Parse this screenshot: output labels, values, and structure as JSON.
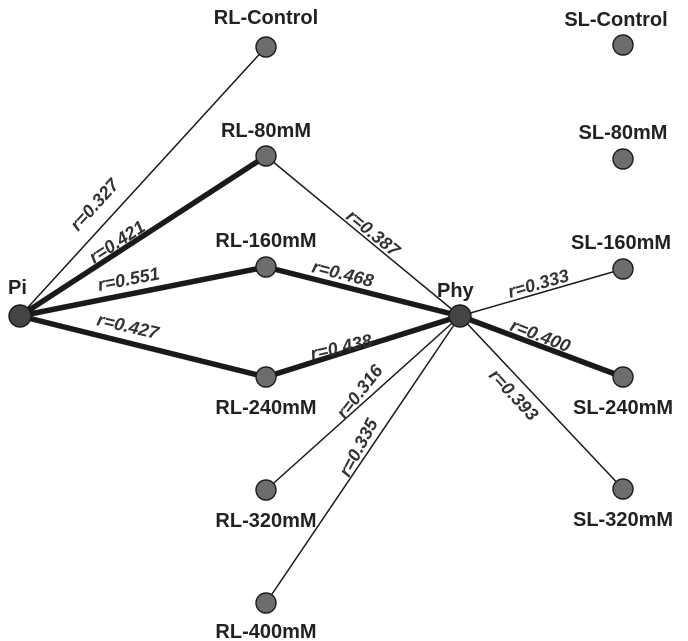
{
  "hubs": {
    "pi": "Pi",
    "phy": "Phy"
  },
  "nodes": {
    "rl_control": "RL-Control",
    "rl_80": "RL-80mM",
    "rl_160": "RL-160mM",
    "rl_240": "RL-240mM",
    "rl_320": "RL-320mM",
    "rl_400": "RL-400mM",
    "sl_control": "SL-Control",
    "sl_80": "SL-80mM",
    "sl_160": "SL-160mM",
    "sl_240": "SL-240mM",
    "sl_320": "SL-320mM"
  },
  "edges": {
    "pi_rl_control": "=0.327",
    "pi_rl_80": "=0.421",
    "pi_rl_160": "=0.551",
    "pi_rl_240": "=0.427",
    "phy_rl_80": "=0.387",
    "phy_rl_160": "=0.468",
    "phy_rl_240": "=0.438",
    "phy_rl_320": "=0.316",
    "phy_rl_400": "=0.335",
    "phy_sl_160": "=0.333",
    "phy_sl_240": "=0.400",
    "phy_sl_320": "=0.393"
  },
  "r_symbol": "r",
  "colors": {
    "edge": "#1a1a1a",
    "node_fill": "#6d6d6d",
    "hub_fill": "#444444",
    "text": "#222222"
  }
}
